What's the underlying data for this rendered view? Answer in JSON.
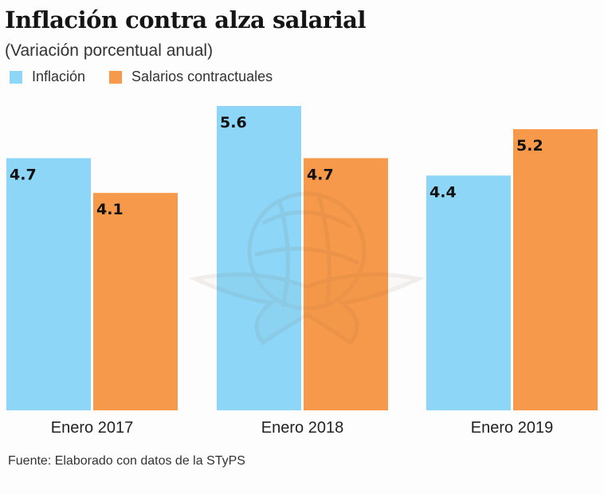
{
  "colors": {
    "inflacion": "#8dd6f7",
    "salarios": "#f7994a"
  },
  "chart_data": {
    "type": "bar",
    "title": "Inflación contra alza salarial",
    "subtitle": "(Variación porcentual anual)",
    "categories": [
      "Enero 2017",
      "Enero 2018",
      "Enero 2019"
    ],
    "series": [
      {
        "name": "Inflación",
        "key": "inflacion",
        "values": [
          4.7,
          5.6,
          4.4
        ],
        "labels": [
          "4.7",
          "5.6",
          "4.4"
        ]
      },
      {
        "name": "Salarios contractuales",
        "key": "salarios",
        "values": [
          4.1,
          4.7,
          5.2
        ],
        "labels": [
          "4.1",
          "4.7",
          "5.2"
        ]
      }
    ],
    "xlabel": "",
    "ylabel": "",
    "ylim": [
      0.35,
      5.6
    ],
    "grid": false,
    "legend_position": "top-left",
    "source": "Fuente: Elaborado con datos de la STyPS"
  }
}
